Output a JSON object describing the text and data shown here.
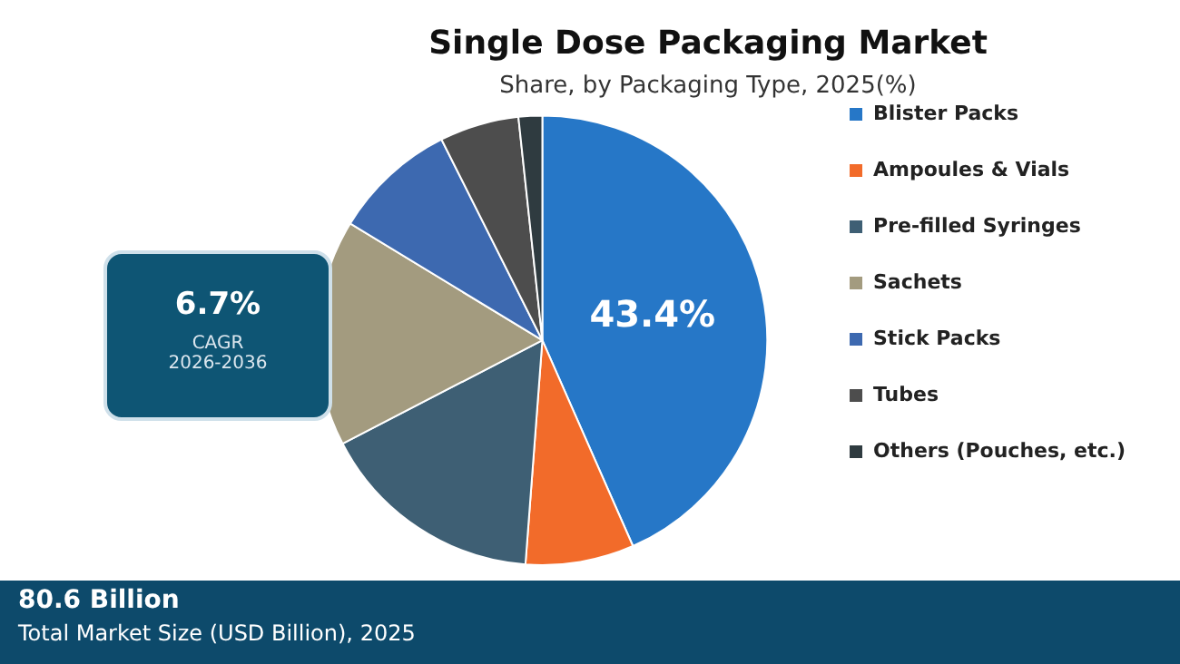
{
  "chart_data": {
    "type": "pie",
    "title": "Single Dose Packaging Market",
    "subtitle": "Share, by Packaging Type, 2025(%)",
    "categories": [
      "Blister Packs",
      "Ampoules & Vials",
      "Pre-filled Syringes",
      "Sachets",
      "Stick Packs",
      "Tubes",
      "Others (Pouches, etc.)"
    ],
    "values": [
      43.4,
      7.8,
      16.2,
      16.3,
      8.9,
      5.7,
      1.7
    ],
    "colors": [
      "#2677c7",
      "#f26b2a",
      "#3e5f74",
      "#a39b7f",
      "#3d69b0",
      "#4d4d4d",
      "#2f3b40"
    ],
    "value_labels": [
      "43.4%",
      null,
      null,
      null,
      null,
      null,
      null
    ],
    "legend": "right",
    "annotations": [
      "6.7%",
      "CAGR",
      "2026-2036",
      "80.6 Billion",
      "Total Market Size (USD Billion), 2025"
    ]
  }
}
